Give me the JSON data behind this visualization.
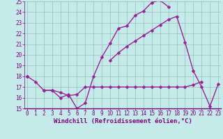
{
  "xlabel": "Windchill (Refroidissement éolien,°C)",
  "x": [
    0,
    1,
    2,
    3,
    4,
    5,
    6,
    7,
    8,
    9,
    10,
    11,
    12,
    13,
    14,
    15,
    16,
    17,
    18,
    19,
    20,
    21,
    22,
    23
  ],
  "line1": [
    18.0,
    17.5,
    16.7,
    16.7,
    16.0,
    16.3,
    15.0,
    15.5,
    18.0,
    19.8,
    21.1,
    22.5,
    22.7,
    23.7,
    24.1,
    24.9,
    25.1,
    24.5,
    null,
    null,
    null,
    null,
    null,
    null
  ],
  "line2": [
    18.0,
    null,
    16.7,
    16.7,
    16.5,
    16.2,
    16.3,
    17.0,
    17.0,
    17.0,
    17.0,
    17.0,
    17.0,
    17.0,
    17.0,
    17.0,
    17.0,
    17.0,
    17.0,
    17.0,
    17.2,
    17.5,
    null,
    null
  ],
  "line3": [
    null,
    null,
    null,
    null,
    null,
    null,
    null,
    null,
    null,
    null,
    19.5,
    20.2,
    20.8,
    21.3,
    21.8,
    22.3,
    22.8,
    23.3,
    23.6,
    21.2,
    18.5,
    17.0,
    15.2,
    17.3
  ],
  "line_color": "#992299",
  "marker": "D",
  "markersize": 2.5,
  "linewidth": 1.0,
  "ylim": [
    15,
    25
  ],
  "xlim": [
    -0.3,
    23.3
  ],
  "yticks": [
    15,
    16,
    17,
    18,
    19,
    20,
    21,
    22,
    23,
    24,
    25
  ],
  "xticks": [
    0,
    1,
    2,
    3,
    4,
    5,
    6,
    7,
    8,
    9,
    10,
    11,
    12,
    13,
    14,
    15,
    16,
    17,
    18,
    19,
    20,
    21,
    22,
    23
  ],
  "bg_color": "#C5EAEA",
  "grid_color": "#99BBBB",
  "tick_color": "#800080",
  "label_color": "#800080",
  "xlabel_fontsize": 6.5,
  "tick_fontsize": 5.5
}
